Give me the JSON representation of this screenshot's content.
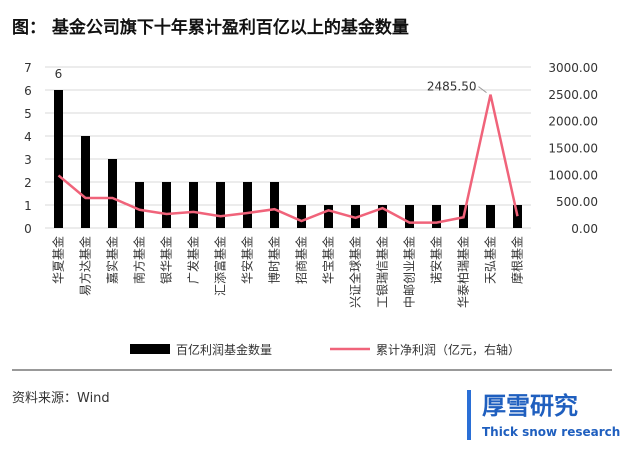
{
  "chart_data": {
    "type": "bar_line",
    "title": "图：  基金公司旗下十年累计盈利百亿以上的基金数量",
    "categories": [
      "华夏基金",
      "易方达基金",
      "嘉实基金",
      "南方基金",
      "银华基金",
      "广发基金",
      "汇添富基金",
      "华安基金",
      "博时基金",
      "招商基金",
      "华宝基金",
      "兴证全球基金",
      "工银瑞信基金",
      "中邮创业基金",
      "诺安基金",
      "华泰柏瑞基金",
      "天弘基金",
      "摩根基金"
    ],
    "series": [
      {
        "name": "百亿利润基金数量",
        "color": "#000000",
        "kind": "bar",
        "values": [
          6,
          4,
          3,
          2,
          2,
          2,
          2,
          2,
          2,
          1,
          1,
          1,
          1,
          1,
          1,
          1,
          1,
          1
        ],
        "value_labels": [
          "6",
          null,
          null,
          null,
          null,
          null,
          null,
          null,
          null,
          null,
          null,
          null,
          null,
          null,
          null,
          null,
          null,
          null
        ]
      },
      {
        "name": "累计净利润（亿元，右轴）",
        "color": "#f0637a",
        "kind": "line",
        "axis": "y2",
        "values": [
          980,
          560,
          560,
          340,
          260,
          300,
          220,
          280,
          350,
          130,
          330,
          190,
          370,
          100,
          100,
          200,
          2485.5,
          220
        ],
        "value_labels": [
          null,
          null,
          null,
          null,
          null,
          null,
          null,
          null,
          null,
          null,
          null,
          null,
          null,
          null,
          null,
          null,
          "2485.50",
          null
        ]
      }
    ],
    "ylim": [
      0,
      7
    ],
    "yticks": [
      0,
      1,
      2,
      3,
      4,
      5,
      6,
      7
    ],
    "y2lim": [
      0,
      3000
    ],
    "y2ticks": [
      {
        "value": 0,
        "label": "0.00"
      },
      {
        "value": 500,
        "label": "500.00"
      },
      {
        "value": 1000,
        "label": "1000.00"
      },
      {
        "value": 1500,
        "label": "1500.00"
      },
      {
        "value": 2000,
        "label": "2000.00"
      },
      {
        "value": 2500,
        "label": "2500.00"
      },
      {
        "value": 3000,
        "label": "3000.00"
      }
    ],
    "grid": true,
    "legend": "bottom"
  },
  "source": "资料来源：Wind",
  "branding": {
    "name": "厚雪研究",
    "subtitle": "Thick snow research"
  }
}
